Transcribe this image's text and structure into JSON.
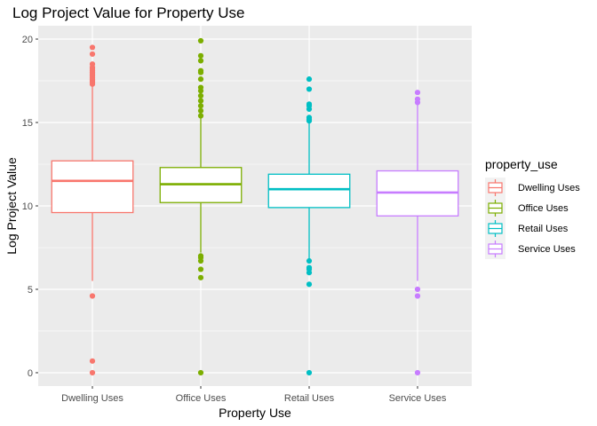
{
  "chart_data": {
    "type": "boxplot",
    "title": "Log Project Value for Property Use",
    "xlabel": "Property Use",
    "ylabel": "Log Project Value",
    "ylim": [
      -0.8,
      20.8
    ],
    "yticks": [
      0,
      5,
      10,
      15,
      20
    ],
    "grid": true,
    "legend_title": "property_use",
    "legend_position": "right",
    "categories": [
      "Dwelling Uses",
      "Office Uses",
      "Retail Uses",
      "Service Uses"
    ],
    "series": [
      {
        "name": "Dwelling Uses",
        "color": "#F8766D",
        "whisker_low": 5.5,
        "q1": 9.6,
        "median": 11.5,
        "q3": 12.7,
        "whisker_high": 17.2,
        "outliers": [
          0.0,
          0.7,
          4.6,
          17.3,
          17.4,
          17.5,
          17.6,
          17.7,
          17.8,
          17.9,
          18.0,
          18.1,
          18.2,
          18.3,
          18.5,
          19.1,
          19.5
        ]
      },
      {
        "name": "Office Uses",
        "color": "#7CAE00",
        "whisker_low": 7.2,
        "q1": 10.2,
        "median": 11.3,
        "q3": 12.3,
        "whisker_high": 15.3,
        "outliers": [
          0.0,
          5.7,
          6.2,
          6.7,
          6.9,
          7.0,
          15.4,
          15.7,
          16.0,
          16.3,
          16.6,
          16.9,
          17.1,
          17.6,
          18.0,
          18.1,
          18.7,
          19.0,
          19.9
        ]
      },
      {
        "name": "Retail Uses",
        "color": "#00BFC4",
        "whisker_low": 6.8,
        "q1": 9.9,
        "median": 11.0,
        "q3": 11.9,
        "whisker_high": 15.0,
        "outliers": [
          0.0,
          5.3,
          6.0,
          6.2,
          6.3,
          6.7,
          15.1,
          15.2,
          15.3,
          15.8,
          16.0,
          16.1,
          17.0,
          17.6
        ]
      },
      {
        "name": "Service Uses",
        "color": "#C77CFF",
        "whisker_low": 5.5,
        "q1": 9.4,
        "median": 10.8,
        "q3": 12.1,
        "whisker_high": 16.1,
        "outliers": [
          0.0,
          4.6,
          5.0,
          16.2,
          16.4,
          16.8
        ]
      }
    ]
  }
}
